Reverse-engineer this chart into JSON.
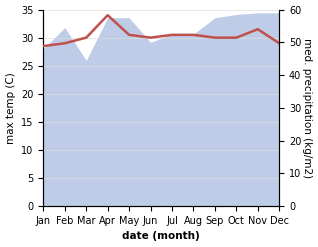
{
  "months": [
    "Jan",
    "Feb",
    "Mar",
    "Apr",
    "May",
    "Jun",
    "Jul",
    "Aug",
    "Sep",
    "Oct",
    "Nov",
    "Dec"
  ],
  "temp": [
    28.5,
    29.0,
    30.0,
    34.0,
    30.5,
    30.0,
    30.5,
    30.5,
    30.0,
    30.0,
    31.5,
    29.0
  ],
  "precip": [
    48.0,
    54.5,
    44.5,
    57.5,
    57.5,
    50.0,
    52.5,
    52.5,
    57.5,
    58.5,
    59.0,
    59.0
  ],
  "temp_color": "#c0504d",
  "precip_fill_color": "#bfcce8",
  "precip_line_color": "#9bb7d4",
  "temp_ylim": [
    0,
    35
  ],
  "precip_ylim": [
    0,
    60
  ],
  "temp_yticks": [
    0,
    5,
    10,
    15,
    20,
    25,
    30,
    35
  ],
  "precip_yticks": [
    0,
    10,
    20,
    30,
    40,
    50,
    60
  ],
  "ylabel_left": "max temp (C)",
  "ylabel_right": "med. precipitation (kg/m2)",
  "xlabel": "date (month)",
  "bg_color": "#ffffff",
  "temp_linewidth": 1.8,
  "precip_linewidth": 0.0,
  "label_fontsize": 7.5,
  "tick_fontsize": 7.0
}
